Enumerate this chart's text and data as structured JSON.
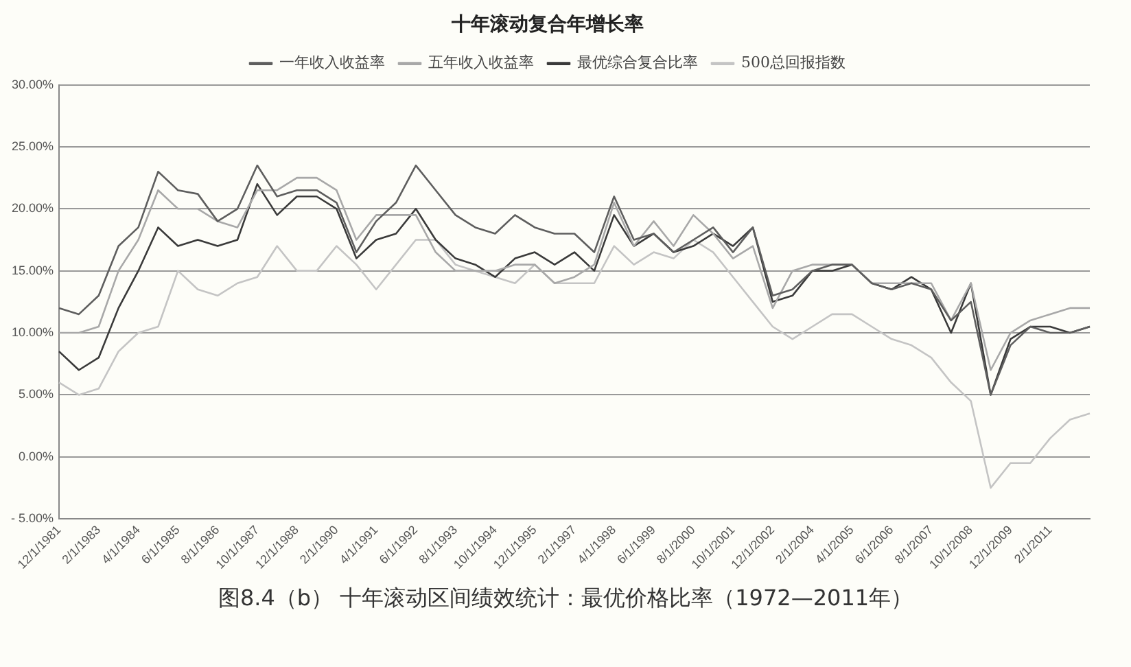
{
  "chart_data": {
    "type": "line",
    "title": "十年滚动复合年增长率",
    "categories": [
      "12/1/1981",
      null,
      "2/1/1983",
      null,
      "4/1/1984",
      null,
      "6/1/1985",
      null,
      "8/1/1986",
      null,
      "10/1/1987",
      null,
      "12/1/1988",
      null,
      "2/1/1990",
      null,
      "4/1/1991",
      null,
      "6/1/1992",
      null,
      "8/1/1993",
      null,
      "10/1/1994",
      null,
      "12/1/1995",
      null,
      "2/1/1997",
      null,
      "4/1/1998",
      null,
      "6/1/1999",
      null,
      "8/1/2000",
      null,
      "10/1/2001",
      null,
      "12/1/2002",
      null,
      "2/1/2004",
      null,
      "4/1/2005",
      null,
      "6/1/2006",
      null,
      "8/1/2007",
      null,
      "10/1/2008",
      null,
      "12/1/2009",
      null,
      "2/1/2011",
      null,
      null
    ],
    "series": [
      {
        "name": "一年收入收益率",
        "color": "#5e5e5e",
        "values": [
          12,
          11.5,
          13,
          17,
          18.5,
          23,
          21.5,
          21.2,
          19,
          20,
          23.5,
          21,
          21.5,
          21.5,
          20.5,
          16.5,
          19,
          20.5,
          23.5,
          21.5,
          19.5,
          18.5,
          18,
          19.5,
          18.5,
          18,
          18,
          16.5,
          21,
          17.5,
          18,
          16.5,
          17.5,
          18.5,
          16.5,
          18.5,
          13,
          13.5,
          15,
          15.5,
          15.5,
          14,
          13.5,
          14,
          13.5,
          11,
          12.5,
          5,
          9,
          10.5,
          10,
          10,
          10.5
        ]
      },
      {
        "name": "五年收入收益率",
        "color": "#a8a8a8",
        "values": [
          10,
          10,
          10.5,
          15,
          17.5,
          21.5,
          20,
          20,
          19,
          18.5,
          21.5,
          21.5,
          22.5,
          22.5,
          21.5,
          17.5,
          19.5,
          19.5,
          19.5,
          16.5,
          15,
          15,
          15,
          15.5,
          15.5,
          14,
          14.5,
          15.5,
          20.5,
          17,
          19,
          17,
          19.5,
          18,
          16,
          17,
          12,
          15,
          15.5,
          15.5,
          15.5,
          14,
          14,
          14,
          14,
          11,
          14,
          7,
          10,
          11,
          11.5,
          12,
          12
        ]
      },
      {
        "name": "最优综合复合比率",
        "color": "#3a3a3a",
        "values": [
          8.5,
          7,
          8,
          12,
          15,
          18.5,
          17,
          17.5,
          17,
          17.5,
          22,
          19.5,
          21,
          21,
          20,
          16,
          17.5,
          18,
          20,
          17.5,
          16,
          15.5,
          14.5,
          16,
          16.5,
          15.5,
          16.5,
          15,
          19.5,
          17,
          18,
          16.5,
          17,
          18,
          17,
          18.5,
          12.5,
          13,
          15,
          15,
          15.5,
          14,
          13.5,
          14.5,
          13.5,
          10,
          14,
          5,
          9.5,
          10.5,
          10.5,
          10,
          10.5
        ]
      },
      {
        "name": "500总回报指数",
        "color": "#c4c4c4",
        "values": [
          6,
          5,
          5.5,
          8.5,
          10,
          10.5,
          15,
          13.5,
          13,
          14,
          14.5,
          17,
          15,
          15,
          17,
          15.5,
          13.5,
          15.5,
          17.5,
          17.5,
          15.5,
          15,
          14.5,
          14,
          15.5,
          14,
          14,
          14,
          17,
          15.5,
          16.5,
          16,
          17.5,
          16.5,
          14.5,
          12.5,
          10.5,
          9.5,
          10.5,
          11.5,
          11.5,
          10.5,
          9.5,
          9,
          8,
          6,
          4.5,
          -2.5,
          -0.5,
          -0.5,
          1.5,
          3,
          3.5
        ]
      }
    ],
    "ylim": [
      -5,
      30
    ],
    "yticks": [
      {
        "value": -5,
        "label": "- 5.00%"
      },
      {
        "value": 0,
        "label": "0.00%"
      },
      {
        "value": 5,
        "label": "5.00%"
      },
      {
        "value": 10,
        "label": "10.00%"
      },
      {
        "value": 15,
        "label": "15.00%"
      },
      {
        "value": 20,
        "label": "20.00%"
      },
      {
        "value": 25,
        "label": "25.00%"
      },
      {
        "value": 30,
        "label": "30.00%"
      }
    ],
    "grid": "y",
    "legend": "top",
    "marker": "none",
    "line_style": "solid",
    "annotations": [
      "图8.4（b） 十年滚动区间绩效统计：最优价格比率（1972—2011年）"
    ]
  }
}
